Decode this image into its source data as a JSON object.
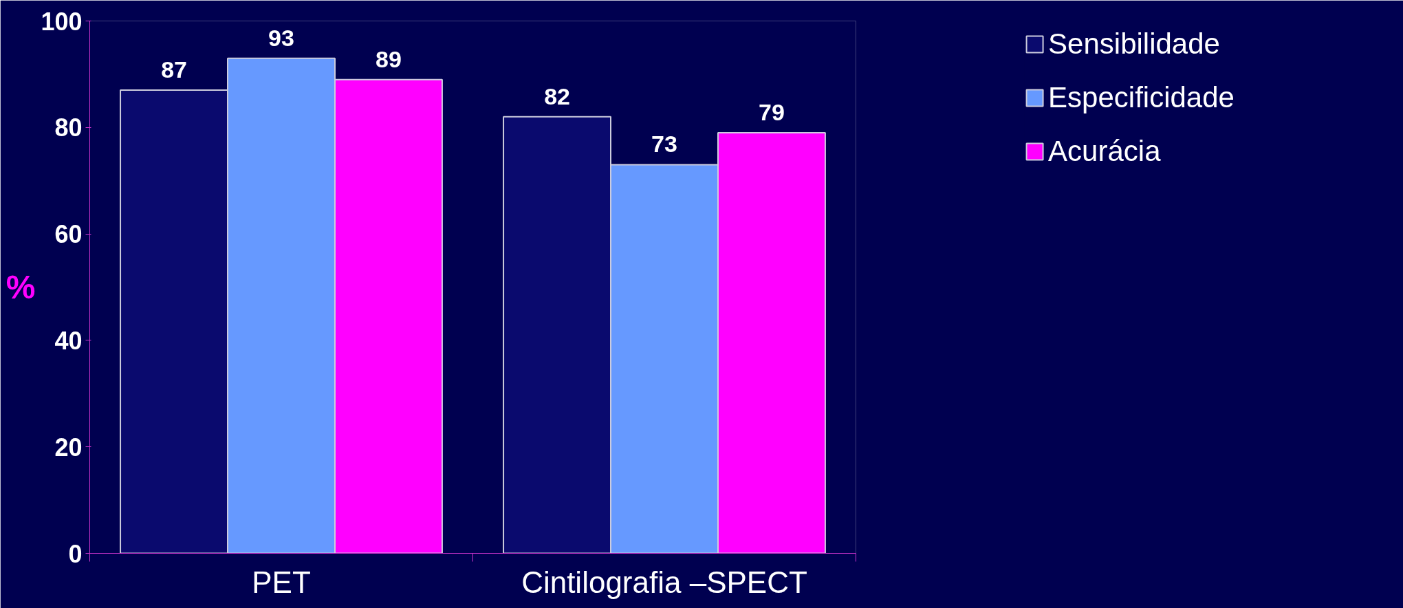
{
  "chart_data": {
    "type": "bar",
    "ylabel": "%",
    "categories": [
      "PET",
      "Cintilografia –SPECT"
    ],
    "series": [
      {
        "name": "Sensibilidade",
        "color": "#0a0a6e",
        "values": [
          87,
          82
        ]
      },
      {
        "name": "Especificidade",
        "color": "#6699ff",
        "values": [
          93,
          73
        ]
      },
      {
        "name": "Acurácia",
        "color": "#ff00ff",
        "values": [
          89,
          79
        ]
      }
    ],
    "ylim": [
      0,
      100
    ],
    "yticks": [
      0,
      20,
      40,
      60,
      80,
      100
    ],
    "data_labels": true,
    "grid": false,
    "legend": "top right"
  }
}
